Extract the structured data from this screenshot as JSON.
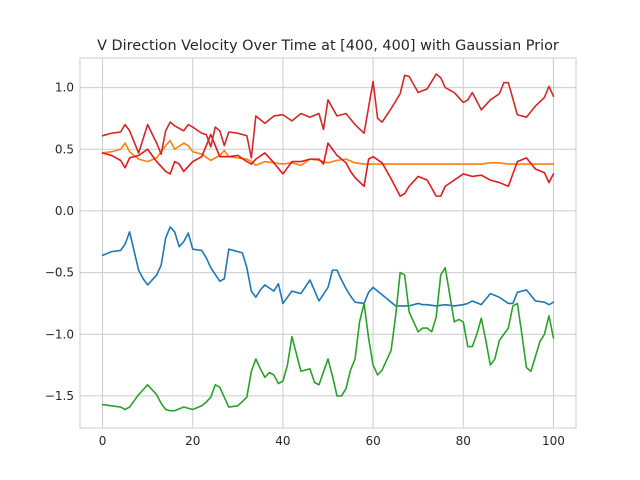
{
  "chart_data": {
    "type": "line",
    "title": "V Direction Velocity Over Time at [400, 400] with Gaussian Prior",
    "xlabel": "",
    "ylabel": "",
    "xlim": [
      -5,
      105
    ],
    "ylim": [
      -1.76,
      1.24
    ],
    "xticks": [
      0,
      20,
      40,
      60,
      80,
      100
    ],
    "xtick_labels": [
      "0",
      "20",
      "40",
      "60",
      "80",
      "100"
    ],
    "yticks": [
      -1.5,
      -1.0,
      -0.5,
      0.0,
      0.5,
      1.0
    ],
    "ytick_labels": [
      "−1.5",
      "−1.0",
      "−0.5",
      "0.0",
      "0.5",
      "1.0"
    ],
    "grid": true,
    "series": [
      {
        "color": "#1f77b4",
        "x": [
          0,
          2,
          4,
          5,
          6,
          8,
          9,
          10,
          12,
          13,
          14,
          15,
          16,
          17,
          18,
          19,
          20,
          22,
          23,
          24,
          26,
          27,
          28,
          30,
          31,
          32,
          33,
          34,
          35,
          36,
          38,
          39,
          40,
          42,
          44,
          46,
          48,
          50,
          51,
          52,
          53,
          54,
          55,
          56,
          58,
          59,
          60,
          62,
          64,
          65,
          66,
          68,
          70,
          71,
          72,
          74,
          76,
          78,
          80,
          81,
          82,
          84,
          86,
          88,
          90,
          91,
          92,
          94,
          96,
          98,
          99,
          100
        ],
        "y": [
          -0.36,
          -0.33,
          -0.32,
          -0.27,
          -0.17,
          -0.48,
          -0.55,
          -0.6,
          -0.52,
          -0.44,
          -0.22,
          -0.13,
          -0.17,
          -0.29,
          -0.25,
          -0.18,
          -0.31,
          -0.32,
          -0.38,
          -0.46,
          -0.57,
          -0.55,
          -0.31,
          -0.33,
          -0.34,
          -0.46,
          -0.65,
          -0.7,
          -0.64,
          -0.6,
          -0.65,
          -0.59,
          -0.75,
          -0.65,
          -0.67,
          -0.56,
          -0.73,
          -0.62,
          -0.48,
          -0.48,
          -0.56,
          -0.63,
          -0.69,
          -0.74,
          -0.75,
          -0.66,
          -0.62,
          -0.68,
          -0.74,
          -0.77,
          -0.77,
          -0.77,
          -0.75,
          -0.76,
          -0.76,
          -0.77,
          -0.76,
          -0.77,
          -0.76,
          -0.75,
          -0.73,
          -0.76,
          -0.67,
          -0.7,
          -0.75,
          -0.75,
          -0.66,
          -0.64,
          -0.73,
          -0.74,
          -0.76,
          -0.74
        ]
      },
      {
        "color": "#ff7f0e",
        "x": [
          0,
          2,
          4,
          5,
          6,
          8,
          10,
          12,
          14,
          15,
          16,
          18,
          19,
          20,
          22,
          24,
          26,
          27,
          28,
          30,
          32,
          33,
          34,
          36,
          38,
          40,
          42,
          44,
          46,
          48,
          50,
          52,
          54,
          56,
          58,
          60,
          62,
          64,
          66,
          68,
          70,
          72,
          74,
          76,
          78,
          80,
          82,
          84,
          86,
          88,
          90,
          92,
          94,
          96,
          98,
          100
        ],
        "y": [
          0.47,
          0.48,
          0.5,
          0.55,
          0.48,
          0.42,
          0.4,
          0.43,
          0.53,
          0.57,
          0.5,
          0.55,
          0.53,
          0.48,
          0.46,
          0.41,
          0.45,
          0.49,
          0.44,
          0.43,
          0.42,
          0.4,
          0.37,
          0.4,
          0.39,
          0.38,
          0.39,
          0.37,
          0.42,
          0.41,
          0.39,
          0.41,
          0.42,
          0.39,
          0.38,
          0.38,
          0.38,
          0.38,
          0.38,
          0.38,
          0.38,
          0.38,
          0.38,
          0.38,
          0.38,
          0.38,
          0.38,
          0.38,
          0.39,
          0.39,
          0.38,
          0.38,
          0.38,
          0.38,
          0.38,
          0.38
        ]
      },
      {
        "color": "#2ca02c",
        "x": [
          0,
          2,
          4,
          5,
          6,
          8,
          9,
          10,
          12,
          13,
          14,
          15,
          16,
          18,
          19,
          20,
          22,
          23,
          24,
          25,
          26,
          27,
          28,
          30,
          32,
          33,
          34,
          35,
          36,
          37,
          38,
          39,
          40,
          41,
          42,
          44,
          46,
          47,
          48,
          50,
          51,
          52,
          53,
          54,
          55,
          56,
          57,
          58,
          59,
          60,
          61,
          62,
          64,
          65,
          66,
          67,
          68,
          70,
          71,
          72,
          73,
          74,
          75,
          76,
          77,
          78,
          79,
          80,
          81,
          82,
          83,
          84,
          85,
          86,
          87,
          88,
          89,
          90,
          91,
          92,
          93,
          94,
          95,
          96,
          97,
          98,
          99,
          100
        ],
        "y": [
          -1.57,
          -1.58,
          -1.59,
          -1.61,
          -1.59,
          -1.49,
          -1.45,
          -1.41,
          -1.49,
          -1.56,
          -1.61,
          -1.62,
          -1.62,
          -1.59,
          -1.6,
          -1.61,
          -1.58,
          -1.55,
          -1.51,
          -1.41,
          -1.43,
          -1.51,
          -1.59,
          -1.58,
          -1.51,
          -1.3,
          -1.2,
          -1.28,
          -1.35,
          -1.31,
          -1.33,
          -1.4,
          -1.38,
          -1.25,
          -1.02,
          -1.3,
          -1.28,
          -1.39,
          -1.41,
          -1.2,
          -1.34,
          -1.5,
          -1.5,
          -1.44,
          -1.29,
          -1.2,
          -0.9,
          -0.75,
          -1.03,
          -1.25,
          -1.33,
          -1.29,
          -1.13,
          -0.85,
          -0.5,
          -0.52,
          -0.82,
          -0.98,
          -0.95,
          -0.95,
          -0.98,
          -0.86,
          -0.52,
          -0.46,
          -0.68,
          -0.9,
          -0.88,
          -0.9,
          -1.1,
          -1.1,
          -1.0,
          -0.87,
          -1.05,
          -1.25,
          -1.2,
          -1.05,
          -1.0,
          -0.95,
          -0.77,
          -0.75,
          -1.0,
          -1.27,
          -1.3,
          -1.18,
          -1.06,
          -1.0,
          -0.85,
          -1.03
        ]
      },
      {
        "color": "#d62728",
        "x": [
          0,
          2,
          4,
          5,
          6,
          8,
          10,
          12,
          13,
          14,
          15,
          16,
          18,
          19,
          20,
          22,
          23,
          24,
          25,
          26,
          27,
          28,
          30,
          32,
          33,
          34,
          36,
          38,
          40,
          42,
          44,
          46,
          48,
          49,
          50,
          52,
          54,
          56,
          58,
          60,
          61,
          62,
          64,
          66,
          67,
          68,
          70,
          72,
          74,
          75,
          76,
          78,
          80,
          81,
          82,
          84,
          86,
          88,
          89,
          90,
          92,
          94,
          96,
          98,
          99,
          100
        ],
        "y": [
          0.61,
          0.63,
          0.64,
          0.7,
          0.65,
          0.47,
          0.7,
          0.55,
          0.46,
          0.65,
          0.72,
          0.69,
          0.65,
          0.7,
          0.68,
          0.63,
          0.62,
          0.52,
          0.68,
          0.65,
          0.53,
          0.64,
          0.63,
          0.61,
          0.43,
          0.77,
          0.71,
          0.77,
          0.78,
          0.73,
          0.79,
          0.76,
          0.79,
          0.66,
          0.9,
          0.77,
          0.79,
          0.7,
          0.63,
          1.05,
          0.75,
          0.72,
          0.83,
          0.95,
          1.1,
          1.09,
          0.96,
          0.99,
          1.11,
          1.08,
          1.0,
          0.96,
          0.88,
          0.9,
          0.96,
          0.82,
          0.9,
          0.95,
          1.04,
          1.04,
          0.78,
          0.76,
          0.85,
          0.92,
          1.01,
          0.93
        ]
      },
      {
        "color": "#e31a1c",
        "x": [
          0,
          2,
          4,
          5,
          6,
          8,
          10,
          12,
          14,
          15,
          16,
          17,
          18,
          19,
          20,
          22,
          24,
          26,
          28,
          30,
          32,
          33,
          34,
          36,
          38,
          40,
          42,
          44,
          46,
          48,
          49,
          50,
          52,
          54,
          55,
          56,
          58,
          59,
          60,
          62,
          64,
          66,
          67,
          68,
          70,
          72,
          74,
          75,
          76,
          78,
          80,
          82,
          84,
          86,
          88,
          90,
          92,
          94,
          96,
          98,
          99,
          100
        ],
        "y": [
          0.47,
          0.45,
          0.41,
          0.35,
          0.43,
          0.45,
          0.5,
          0.4,
          0.32,
          0.3,
          0.4,
          0.38,
          0.32,
          0.36,
          0.4,
          0.44,
          0.62,
          0.44,
          0.44,
          0.45,
          0.4,
          0.38,
          0.42,
          0.47,
          0.39,
          0.3,
          0.4,
          0.4,
          0.42,
          0.42,
          0.38,
          0.55,
          0.45,
          0.39,
          0.32,
          0.27,
          0.2,
          0.42,
          0.44,
          0.39,
          0.26,
          0.12,
          0.14,
          0.2,
          0.28,
          0.25,
          0.12,
          0.12,
          0.2,
          0.25,
          0.3,
          0.28,
          0.29,
          0.25,
          0.23,
          0.2,
          0.4,
          0.43,
          0.34,
          0.31,
          0.23,
          0.3
        ]
      }
    ]
  }
}
